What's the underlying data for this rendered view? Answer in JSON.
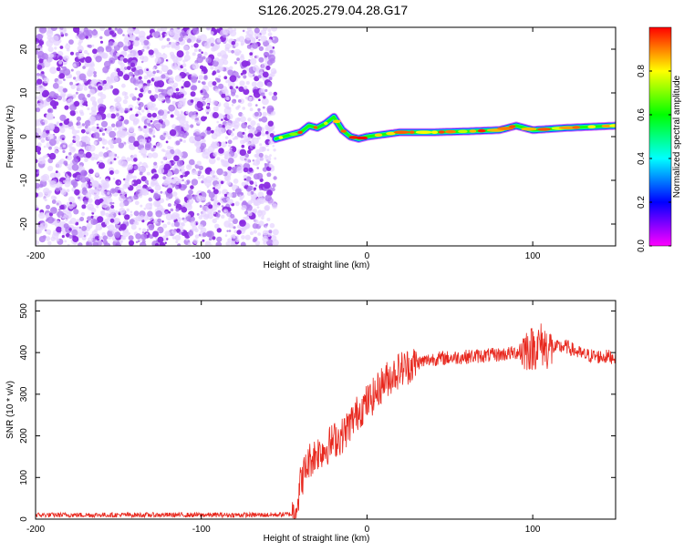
{
  "title": "S126.2025.279.04.28.G17",
  "colors": {
    "snr_line": "#e8281e",
    "noise": "#8a2be2",
    "background": "#ffffff"
  },
  "chart_data": [
    {
      "type": "heatmap",
      "xlabel": "Height of straight line (km)",
      "ylabel": "Frequency (Hz)",
      "xlim": [
        -200,
        150
      ],
      "ylim": [
        -25,
        25
      ],
      "x_ticks": [
        -200,
        -100,
        0,
        100
      ],
      "y_ticks": [
        -20,
        -10,
        0,
        10,
        20
      ],
      "noise_region_x": [
        -200,
        -55
      ],
      "ridge_center": {
        "x": [
          -55,
          -50,
          -45,
          -40,
          -35,
          -30,
          -25,
          -20,
          -15,
          -10,
          -5,
          0,
          10,
          20,
          40,
          60,
          80,
          90,
          100,
          120,
          150
        ],
        "y": [
          -0.5,
          0,
          0.5,
          1,
          2.5,
          2,
          3,
          4.5,
          1.5,
          0,
          -0.5,
          0,
          0.5,
          1,
          1,
          1.2,
          1.5,
          2.5,
          1.5,
          2,
          2.5
        ]
      },
      "colorbar": {
        "label": "Normalized spectral amplitude",
        "range": [
          0,
          1
        ],
        "ticks": [
          "0.0",
          "0.2",
          "0.4",
          "0.6",
          "0.8"
        ]
      }
    },
    {
      "type": "line",
      "xlabel": "Height of straight line (km)",
      "ylabel": "SNR (10 * v/v)",
      "xlim": [
        -200,
        150
      ],
      "ylim": [
        0,
        525
      ],
      "x_ticks": [
        -200,
        -100,
        0,
        100
      ],
      "y_ticks": [
        0,
        100,
        200,
        300,
        400,
        500
      ],
      "series": [
        {
          "name": "SNR",
          "x": [
            -200,
            -150,
            -100,
            -60,
            -45,
            -42,
            -40,
            -35,
            -30,
            -25,
            -20,
            -15,
            -10,
            -5,
            0,
            5,
            10,
            20,
            30,
            40,
            60,
            80,
            90,
            95,
            100,
            105,
            110,
            120,
            130,
            140,
            150
          ],
          "y": [
            10,
            10,
            10,
            10,
            12,
            40,
            90,
            140,
            160,
            170,
            190,
            200,
            230,
            260,
            280,
            300,
            330,
            360,
            375,
            385,
            390,
            395,
            400,
            410,
            410,
            420,
            410,
            415,
            395,
            390,
            390
          ]
        }
      ]
    }
  ]
}
